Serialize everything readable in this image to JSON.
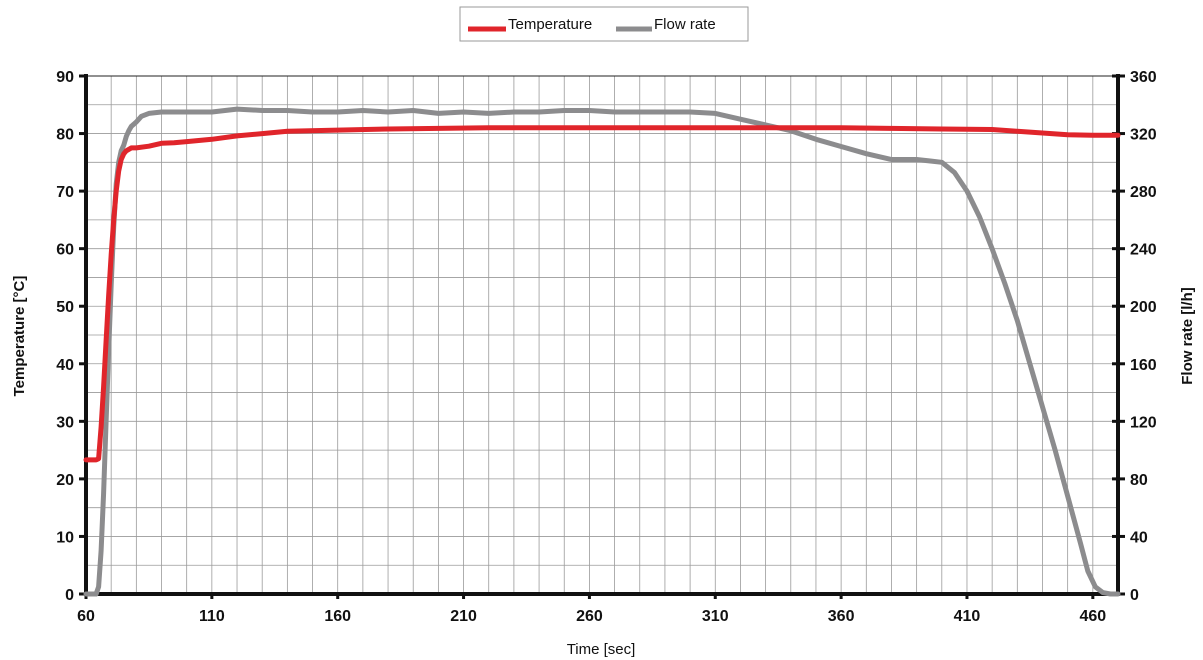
{
  "chart_data": {
    "type": "line",
    "xlabel": "Time [sec]",
    "ylabel_left": "Temperature [°C]",
    "ylabel_right": "Flow rate [l/h]",
    "xlim": [
      60,
      470
    ],
    "ylim_left": [
      0,
      90
    ],
    "ylim_right": [
      0,
      360
    ],
    "x_ticks": [
      60,
      110,
      160,
      210,
      260,
      310,
      360,
      410,
      460
    ],
    "y_ticks_left": [
      0,
      10,
      20,
      30,
      40,
      50,
      60,
      70,
      80,
      90
    ],
    "y_ticks_right": [
      0,
      40,
      80,
      120,
      160,
      200,
      240,
      280,
      320,
      360
    ],
    "grid": true,
    "legend_position": "top-center",
    "series": [
      {
        "name": "Temperature",
        "axis": "left",
        "color": "#e0252b",
        "x": [
          60,
          62,
          64,
          65,
          66,
          67,
          68,
          69,
          70,
          71,
          72,
          73,
          74,
          75,
          76,
          78,
          80,
          85,
          90,
          95,
          100,
          110,
          120,
          130,
          140,
          160,
          180,
          200,
          220,
          240,
          260,
          280,
          300,
          320,
          340,
          360,
          380,
          400,
          420,
          430,
          440,
          450,
          460,
          470
        ],
        "y": [
          23.3,
          23.3,
          23.3,
          23.5,
          29,
          36,
          44,
          52,
          59,
          65,
          70,
          73.5,
          75.5,
          76.5,
          77,
          77.5,
          77.5,
          77.8,
          78.3,
          78.4,
          78.6,
          79,
          79.6,
          80,
          80.4,
          80.6,
          80.8,
          80.9,
          81,
          81,
          81,
          81,
          81,
          81,
          81,
          81,
          80.9,
          80.8,
          80.7,
          80.4,
          80.1,
          79.8,
          79.7,
          79.7
        ]
      },
      {
        "name": "Flow rate",
        "axis": "right",
        "color": "#8c8c8e",
        "x": [
          60,
          62,
          64,
          65,
          66,
          67,
          68,
          69,
          70,
          71,
          72,
          73,
          74,
          75,
          76,
          77,
          78,
          80,
          82,
          85,
          90,
          100,
          110,
          120,
          130,
          140,
          150,
          160,
          170,
          180,
          190,
          200,
          210,
          220,
          230,
          240,
          250,
          260,
          270,
          280,
          290,
          300,
          310,
          320,
          330,
          340,
          350,
          360,
          370,
          380,
          390,
          395,
          400,
          405,
          410,
          415,
          420,
          425,
          430,
          435,
          440,
          445,
          450,
          455,
          458,
          461,
          464,
          467,
          470
        ],
        "y": [
          0,
          0,
          0,
          5,
          30,
          70,
          120,
          170,
          215,
          255,
          285,
          300,
          308,
          312,
          318,
          322,
          325,
          328,
          332,
          334,
          335,
          335,
          335,
          337,
          336,
          336,
          335,
          335,
          336,
          335,
          336,
          334,
          335,
          334,
          335,
          335,
          336,
          336,
          335,
          335,
          335,
          335,
          334,
          330,
          326,
          322,
          316,
          311,
          306,
          302,
          302,
          301,
          300,
          293,
          280,
          262,
          240,
          216,
          190,
          160,
          130,
          100,
          68,
          36,
          16,
          5,
          1,
          0,
          0
        ]
      }
    ]
  }
}
